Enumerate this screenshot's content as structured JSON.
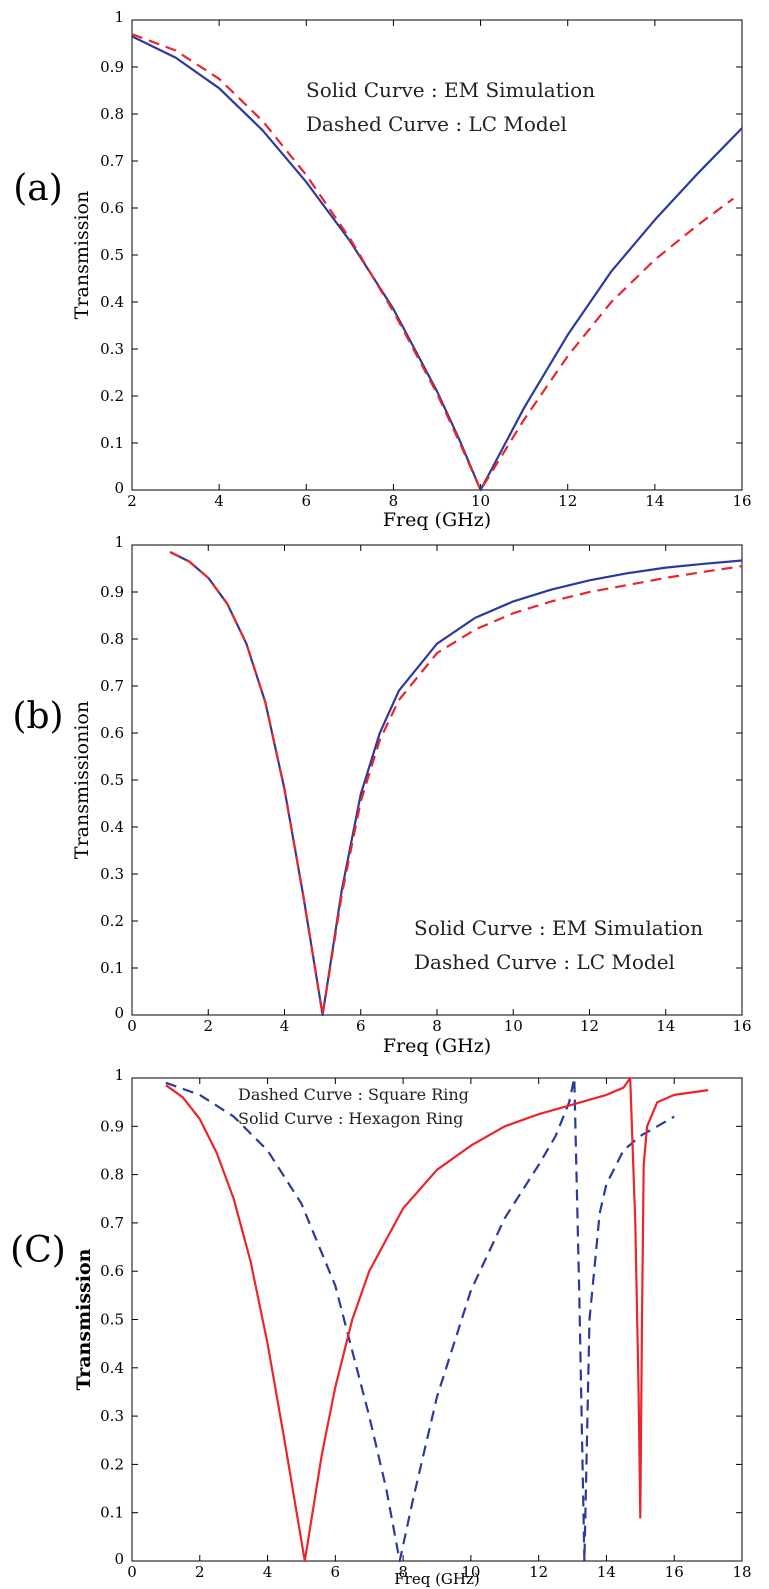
{
  "chart_data": [
    {
      "panel_label": "(a)",
      "type": "line",
      "xlabel": "Freq (GHz)",
      "ylabel": "Transmission",
      "xlim": [
        2,
        16
      ],
      "ylim": [
        0,
        1
      ],
      "xticks": [
        "2",
        "4",
        "6",
        "8",
        "10",
        "12",
        "14",
        "16"
      ],
      "yticks": [
        "0",
        "0.1",
        "0.2",
        "0.3",
        "0.4",
        "0.5",
        "0.6",
        "0.7",
        "0.8",
        "0.9",
        "1"
      ],
      "annotations": [
        "Solid Curve : EM Simulation",
        "Dashed Curve : LC Model"
      ],
      "grid": false,
      "series": [
        {
          "name": "EM Simulation",
          "style": "solid",
          "color": "#2b3a9b",
          "x": [
            2,
            3,
            4,
            5,
            6,
            7,
            8,
            9,
            9.5,
            10,
            11,
            12,
            13,
            14,
            15,
            16
          ],
          "y": [
            0.965,
            0.92,
            0.855,
            0.765,
            0.655,
            0.53,
            0.385,
            0.21,
            0.11,
            0.0,
            0.175,
            0.33,
            0.465,
            0.575,
            0.675,
            0.77
          ]
        },
        {
          "name": "LC Model",
          "style": "dashed",
          "color": "#e8262b",
          "x": [
            2,
            3,
            4,
            5,
            6,
            7,
            8,
            9,
            9.5,
            10,
            11,
            12,
            13,
            14,
            15,
            15.8
          ],
          "y": [
            0.97,
            0.935,
            0.875,
            0.785,
            0.67,
            0.535,
            0.38,
            0.205,
            0.105,
            0.0,
            0.15,
            0.285,
            0.4,
            0.49,
            0.565,
            0.62
          ]
        }
      ]
    },
    {
      "panel_label": "(b)",
      "type": "line",
      "xlabel": "Freq (GHz)",
      "ylabel": "Transmissionion",
      "xlim": [
        0,
        16
      ],
      "ylim": [
        0,
        1
      ],
      "xticks": [
        "0",
        "2",
        "4",
        "6",
        "8",
        "10",
        "12",
        "14",
        "16"
      ],
      "yticks": [
        "0",
        "0.1",
        "0.2",
        "0.3",
        "0.4",
        "0.5",
        "0.6",
        "0.7",
        "0.8",
        "0.9",
        "1"
      ],
      "annotations": [
        "Solid Curve : EM Simulation",
        "Dashed Curve : LC Model"
      ],
      "grid": false,
      "series": [
        {
          "name": "EM Simulation",
          "style": "solid",
          "color": "#2b3a9b",
          "x": [
            1,
            1.5,
            2,
            2.5,
            3,
            3.5,
            4,
            4.5,
            5,
            5.5,
            6,
            6.5,
            7,
            8,
            9,
            10,
            11,
            12,
            13,
            14,
            15,
            16
          ],
          "y": [
            0.985,
            0.965,
            0.93,
            0.875,
            0.79,
            0.665,
            0.48,
            0.25,
            0.0,
            0.265,
            0.47,
            0.6,
            0.69,
            0.79,
            0.845,
            0.88,
            0.905,
            0.925,
            0.94,
            0.952,
            0.96,
            0.967
          ]
        },
        {
          "name": "LC Model",
          "style": "dashed",
          "color": "#e8262b",
          "x": [
            1,
            1.5,
            2,
            2.5,
            3,
            3.5,
            4,
            4.5,
            5,
            5.5,
            6,
            6.5,
            7,
            8,
            9,
            10,
            11,
            12,
            13,
            14,
            15,
            16
          ],
          "y": [
            0.985,
            0.965,
            0.93,
            0.875,
            0.79,
            0.665,
            0.48,
            0.25,
            0.0,
            0.255,
            0.455,
            0.585,
            0.67,
            0.77,
            0.82,
            0.855,
            0.88,
            0.9,
            0.915,
            0.93,
            0.943,
            0.955
          ]
        }
      ]
    },
    {
      "panel_label": "(C)",
      "type": "line",
      "xlabel": "Freq (GHz)",
      "ylabel": "Transmission",
      "xlim": [
        0,
        18
      ],
      "ylim": [
        0,
        1
      ],
      "xticks": [
        "0",
        "2",
        "4",
        "6",
        "8",
        "10",
        "12",
        "14",
        "16",
        "18"
      ],
      "yticks": [
        "0",
        "0.1",
        "0.2",
        "0.3",
        "0.4",
        "0.5",
        "0.6",
        "0.7",
        "0.8",
        "0.9",
        "1"
      ],
      "annotations": [
        "Dashed Curve : Square Ring",
        "Solid Curve : Hexagon Ring"
      ],
      "grid": false,
      "series": [
        {
          "name": "Square Ring",
          "style": "dashed",
          "color": "#2b3a9b",
          "x": [
            1,
            2,
            3,
            4,
            5,
            6,
            7,
            7.5,
            7.9,
            8.3,
            9,
            10,
            11,
            12,
            12.5,
            12.9,
            13.05,
            13.2,
            13.35,
            13.5,
            13.8,
            14,
            14.5,
            15,
            15.5,
            16
          ],
          "y": [
            0.99,
            0.965,
            0.92,
            0.85,
            0.74,
            0.57,
            0.3,
            0.15,
            0.0,
            0.13,
            0.34,
            0.56,
            0.71,
            0.82,
            0.88,
            0.95,
            1.0,
            0.55,
            0.0,
            0.5,
            0.72,
            0.78,
            0.85,
            0.88,
            0.9,
            0.92
          ]
        },
        {
          "name": "Hexagon Ring",
          "style": "solid",
          "color": "#e8262b",
          "x": [
            1,
            1.5,
            2,
            2.5,
            3,
            3.5,
            4,
            4.5,
            5.1,
            5.6,
            6,
            6.5,
            7,
            8,
            9,
            10,
            11,
            12,
            13,
            14,
            14.5,
            14.7,
            14.85,
            14.95,
            15.0,
            15.05,
            15.1,
            15.2,
            15.5,
            16,
            17
          ],
          "y": [
            0.985,
            0.96,
            0.915,
            0.845,
            0.75,
            0.62,
            0.45,
            0.25,
            0.0,
            0.22,
            0.36,
            0.5,
            0.6,
            0.73,
            0.81,
            0.86,
            0.9,
            0.925,
            0.945,
            0.965,
            0.98,
            1.0,
            0.7,
            0.35,
            0.09,
            0.5,
            0.82,
            0.9,
            0.95,
            0.965,
            0.975
          ]
        }
      ]
    }
  ]
}
